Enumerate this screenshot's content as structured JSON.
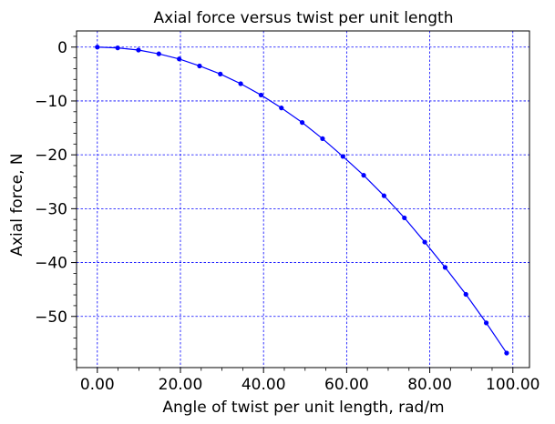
{
  "chart_data": {
    "type": "line",
    "title": "Axial force versus twist per unit length",
    "xlabel": "Angle of twist per unit length, rad/m",
    "ylabel": "Axial force, N",
    "xlim": [
      -5,
      104
    ],
    "ylim": [
      -59.5,
      3
    ],
    "xticks": [
      0,
      20,
      40,
      60,
      80,
      100
    ],
    "xtick_labels": [
      "0.00",
      "20.00",
      "40.00",
      "60.00",
      "80.00",
      "100.00"
    ],
    "yticks": [
      0,
      -10,
      -20,
      -30,
      -40,
      -50
    ],
    "ytick_labels": [
      "0",
      "−10",
      "−20",
      "−30",
      "−40",
      "−50"
    ],
    "grid": true,
    "grid_color": "#0000ff",
    "series_color": "#0000ff",
    "series": [
      {
        "x": [
          0,
          4.9,
          9.9,
          14.8,
          19.7,
          24.6,
          29.6,
          34.5,
          39.4,
          44.3,
          49.3,
          54.2,
          59.1,
          64.1,
          69.0,
          73.9,
          78.8,
          83.7,
          88.7,
          93.6,
          98.5
        ],
        "y": [
          0,
          -0.15,
          -0.55,
          -1.25,
          -2.2,
          -3.5,
          -5.0,
          -6.8,
          -8.9,
          -11.3,
          -14.0,
          -17.0,
          -20.3,
          -23.8,
          -27.6,
          -31.7,
          -36.2,
          -40.9,
          -45.9,
          -51.2,
          -56.8
        ]
      }
    ]
  }
}
